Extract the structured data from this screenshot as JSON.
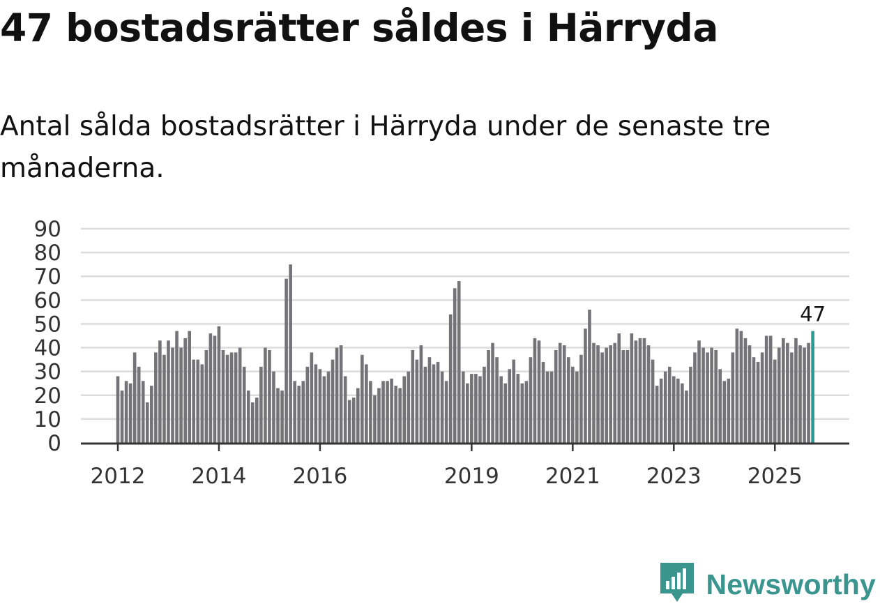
{
  "header": {
    "title": "47 bostadsrätter såldes i Härryda",
    "subtitle": "Antal sålda bostadsrätter i Härryda under de senaste tre månaderna."
  },
  "brand": {
    "name": "Newsworthy",
    "icon": "newsworthy-logo-icon"
  },
  "colors": {
    "bar": "#747478",
    "highlight": "#2a9a94",
    "grid": "#dcdcdc",
    "axis": "#333333",
    "brand": "#3a958f"
  },
  "chart_data": {
    "type": "bar",
    "title": "Antal sålda bostadsrätter i Härryda under de senaste tre månaderna.",
    "xlabel": "",
    "ylabel": "",
    "ylim": [
      0,
      90
    ],
    "yticks": [
      0,
      10,
      20,
      30,
      40,
      50,
      60,
      70,
      80,
      90
    ],
    "xticks": [
      {
        "label": "2012",
        "index": 0
      },
      {
        "label": "2014",
        "index": 24
      },
      {
        "label": "2016",
        "index": 48
      },
      {
        "label": "2019",
        "index": 84
      },
      {
        "label": "2021",
        "index": 108
      },
      {
        "label": "2023",
        "index": 132
      },
      {
        "label": "2025",
        "index": 156
      }
    ],
    "last_value_label": "47",
    "values": [
      28,
      22,
      26,
      25,
      38,
      32,
      26,
      17,
      24,
      38,
      43,
      37,
      43,
      40,
      47,
      40,
      44,
      47,
      35,
      35,
      33,
      39,
      46,
      45,
      49,
      39,
      37,
      38,
      38,
      40,
      32,
      22,
      17,
      19,
      32,
      40,
      39,
      30,
      23,
      22,
      69,
      75,
      26,
      24,
      26,
      32,
      38,
      33,
      31,
      28,
      30,
      35,
      40,
      41,
      28,
      18,
      19,
      23,
      37,
      33,
      26,
      20,
      23,
      26,
      26,
      27,
      24,
      23,
      28,
      30,
      39,
      35,
      41,
      32,
      36,
      33,
      34,
      30,
      26,
      54,
      65,
      68,
      30,
      25,
      29,
      29,
      28,
      32,
      39,
      42,
      36,
      28,
      25,
      31,
      35,
      29,
      25,
      26,
      36,
      44,
      43,
      34,
      30,
      30,
      39,
      42,
      41,
      36,
      32,
      30,
      37,
      48,
      56,
      42,
      41,
      38,
      40,
      41,
      42,
      46,
      39,
      39,
      46,
      43,
      44,
      44,
      41,
      35,
      24,
      27,
      30,
      32,
      28,
      27,
      25,
      22,
      32,
      38,
      43,
      40,
      38,
      40,
      39,
      31,
      26,
      27,
      38,
      48,
      47,
      44,
      41,
      36,
      34,
      38,
      45,
      45,
      35,
      40,
      44,
      42,
      38,
      44,
      41,
      40,
      42,
      47
    ]
  }
}
